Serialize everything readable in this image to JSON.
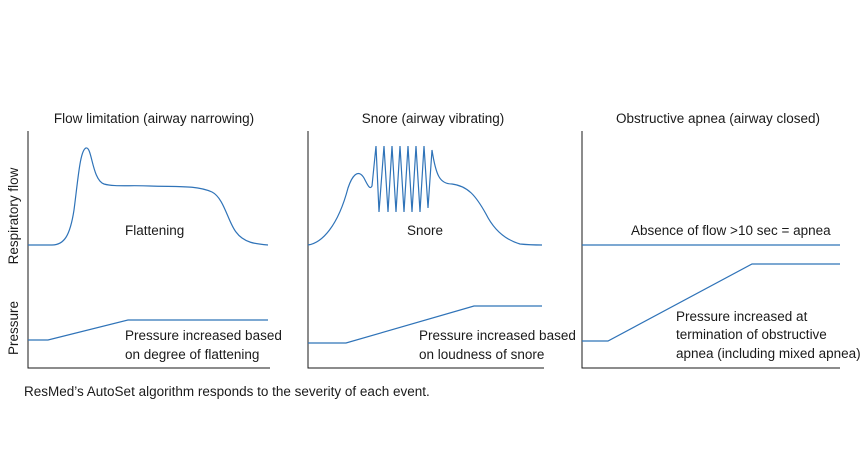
{
  "axis_labels": {
    "flow": "Respiratory flow",
    "pressure": "Pressure"
  },
  "panels": [
    {
      "title": "Flow limitation (airway narrowing)",
      "flow_label": "Flattening",
      "pressure_label_lines": [
        "Pressure increased based",
        "on degree of flattening"
      ]
    },
    {
      "title": "Snore (airway vibrating)",
      "flow_label": "Snore",
      "pressure_label_lines": [
        "Pressure increased based",
        "on loudness of snore"
      ]
    },
    {
      "title": "Obstructive apnea (airway closed)",
      "flow_label": "Absence of flow >10 sec = apnea",
      "pressure_label_lines": [
        "Pressure increased at",
        "termination of obstructive",
        "apnea (including mixed apnea)"
      ]
    }
  ],
  "caption": "ResMed’s AutoSet algorithm responds to the severity of each event.",
  "colors": {
    "trace": "#2f73b8",
    "axis": "#1a1a1a",
    "text": "#1a1a1a"
  }
}
